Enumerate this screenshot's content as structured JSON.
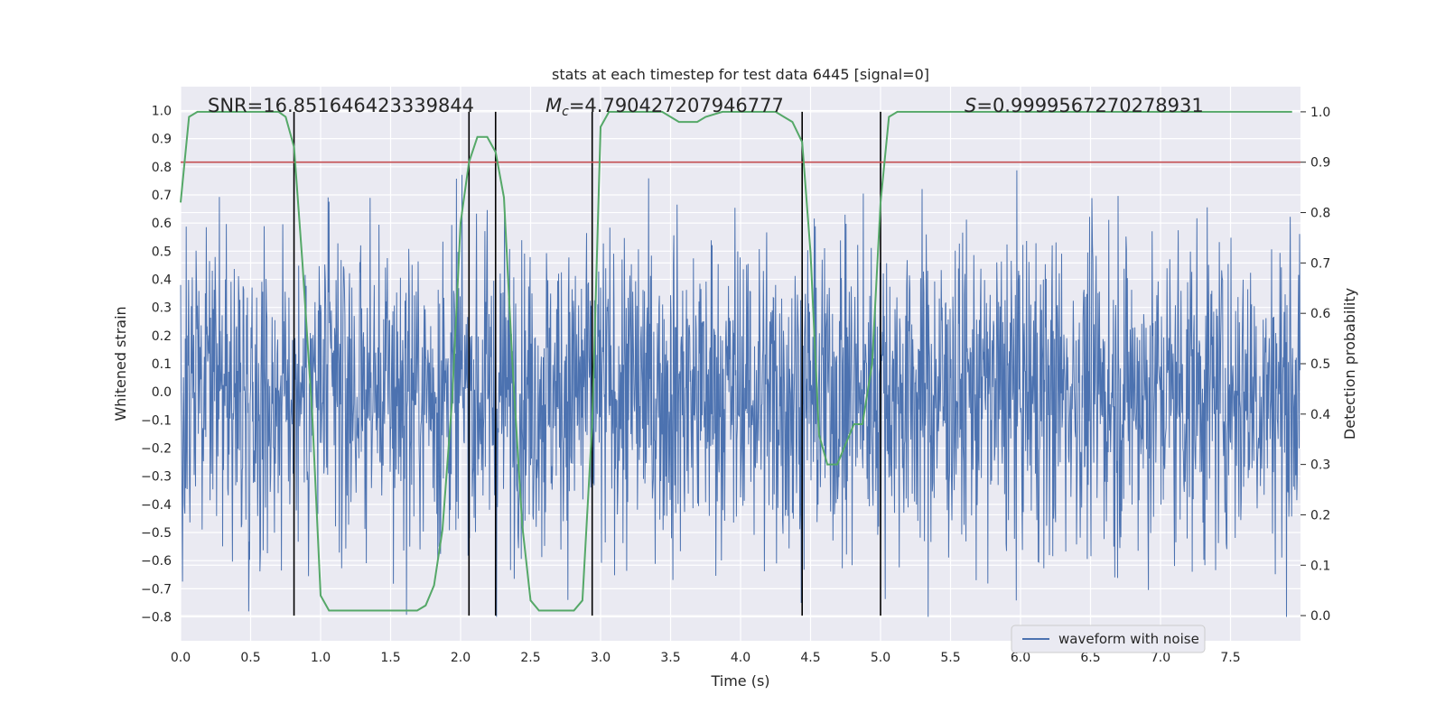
{
  "chart_data": {
    "type": "line",
    "title": "stats at each timestep for test data 6445 [signal=0]",
    "xlabel": "Time (s)",
    "ylabel_left": "Whitened strain",
    "ylabel_right": "Detection probability",
    "xlim": [
      0.0,
      8.0
    ],
    "ylim_left": [
      -0.885,
      1.085
    ],
    "ylim_right": [
      -0.05,
      1.05
    ],
    "x_ticks": [
      "0.0",
      "0.5",
      "1.0",
      "1.5",
      "2.0",
      "2.5",
      "3.0",
      "3.5",
      "4.0",
      "4.5",
      "5.0",
      "5.5",
      "6.0",
      "6.5",
      "7.0",
      "7.5"
    ],
    "y_ticks_left": [
      "−0.8",
      "−0.7",
      "−0.6",
      "−0.5",
      "−0.4",
      "−0.3",
      "−0.2",
      "−0.1",
      "0.0",
      "0.1",
      "0.2",
      "0.3",
      "0.4",
      "0.5",
      "0.6",
      "0.7",
      "0.8",
      "0.9",
      "1.0"
    ],
    "y_ticks_right": [
      "0.0",
      "0.1",
      "0.2",
      "0.3",
      "0.4",
      "0.5",
      "0.6",
      "0.7",
      "0.8",
      "0.9",
      "1.0"
    ],
    "annotations": {
      "snr": "SNR=16.851646423339844",
      "mc_symbol": "M",
      "mc_sub": "c",
      "mc_value": "=4.790427207946777",
      "s_symbol": "S",
      "s_value": "=0.9999567270278931"
    },
    "legend": {
      "label": "waveform with noise",
      "position": "lower-right"
    },
    "threshold": {
      "value": 0.9,
      "axis": "right",
      "color": "#c44e52"
    },
    "vertical_lines": [
      0.81,
      2.06,
      2.25,
      2.94,
      4.44,
      5.0
    ],
    "waveform": {
      "name": "waveform with noise",
      "color": "#4c72b0",
      "duration": 8.0,
      "samples": 2400,
      "typical_amplitude": 0.28,
      "max": 1.0,
      "min": -0.8
    },
    "series": [
      {
        "name": "detection probability",
        "axis": "right",
        "color": "#55a868",
        "x": [
          0.0,
          0.06,
          0.12,
          0.25,
          0.5,
          0.7,
          0.75,
          0.81,
          0.87,
          0.94,
          1.0,
          1.06,
          1.12,
          1.25,
          1.37,
          1.5,
          1.62,
          1.69,
          1.75,
          1.81,
          1.87,
          1.94,
          2.0,
          2.06,
          2.12,
          2.19,
          2.25,
          2.31,
          2.37,
          2.44,
          2.5,
          2.56,
          2.62,
          2.69,
          2.75,
          2.81,
          2.87,
          2.94,
          3.0,
          3.06,
          3.12,
          3.25,
          3.37,
          3.44,
          3.5,
          3.56,
          3.62,
          3.69,
          3.75,
          3.87,
          4.0,
          4.12,
          4.25,
          4.31,
          4.37,
          4.44,
          4.5,
          4.56,
          4.62,
          4.69,
          4.75,
          4.81,
          4.87,
          4.94,
          5.0,
          5.06,
          5.12,
          5.25,
          5.5,
          6.0,
          6.5,
          7.0,
          7.5,
          7.94
        ],
        "y": [
          0.82,
          0.99,
          1.0,
          1.0,
          1.0,
          1.0,
          0.99,
          0.93,
          0.7,
          0.4,
          0.04,
          0.01,
          0.01,
          0.01,
          0.01,
          0.01,
          0.01,
          0.01,
          0.02,
          0.06,
          0.17,
          0.43,
          0.78,
          0.9,
          0.95,
          0.95,
          0.92,
          0.83,
          0.5,
          0.18,
          0.03,
          0.01,
          0.01,
          0.01,
          0.01,
          0.01,
          0.03,
          0.38,
          0.97,
          1.0,
          1.0,
          1.0,
          1.0,
          1.0,
          0.99,
          0.98,
          0.98,
          0.98,
          0.99,
          1.0,
          1.0,
          1.0,
          1.0,
          0.99,
          0.98,
          0.94,
          0.72,
          0.36,
          0.3,
          0.3,
          0.34,
          0.38,
          0.38,
          0.5,
          0.82,
          0.99,
          1.0,
          1.0,
          1.0,
          1.0,
          1.0,
          1.0,
          1.0,
          1.0
        ]
      }
    ]
  }
}
